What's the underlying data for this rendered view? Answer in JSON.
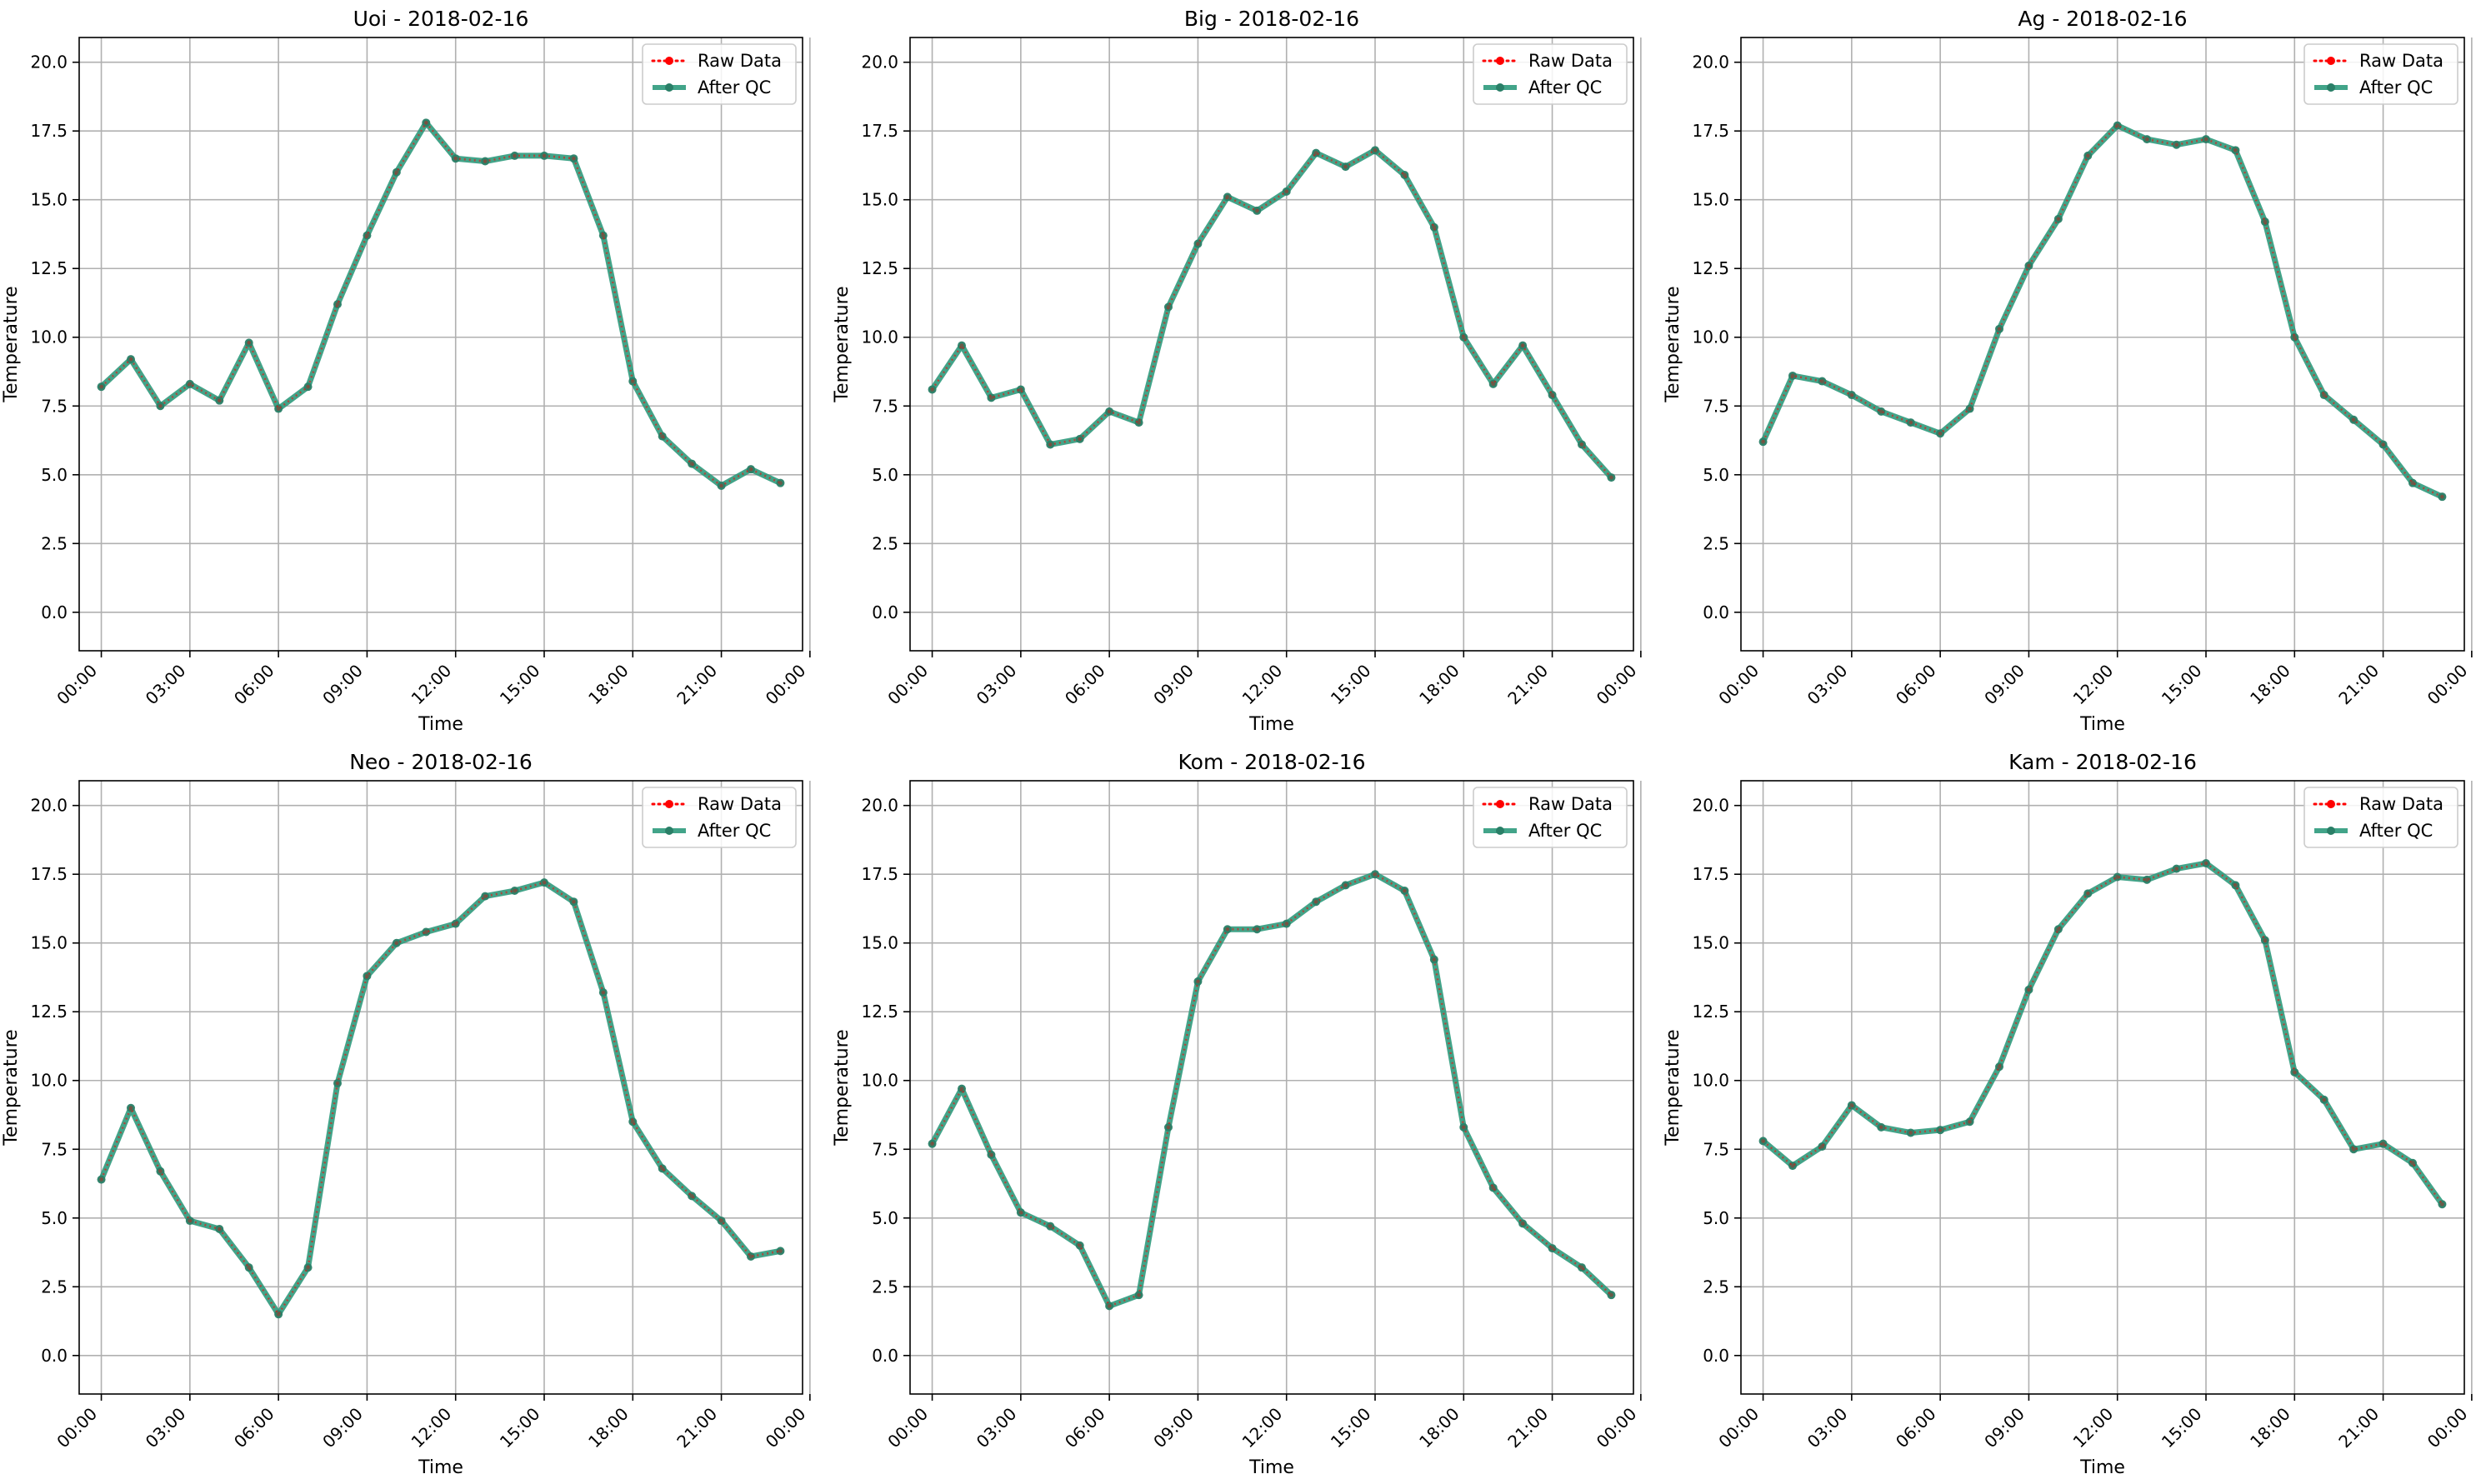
{
  "chart_data": [
    {
      "type": "line",
      "title": "Uoi - 2018-02-16",
      "xlabel": "Time",
      "ylabel": "Temperature",
      "xlim_hours": [
        -0.75,
        23.75
      ],
      "ylim": [
        -1.4,
        20.9
      ],
      "x_ticks": [
        "00:00",
        "03:00",
        "06:00",
        "09:00",
        "12:00",
        "15:00",
        "18:00",
        "21:00",
        "00:00"
      ],
      "y_ticks": [
        "0.0",
        "2.5",
        "5.0",
        "7.5",
        "10.0",
        "12.5",
        "15.0",
        "17.5",
        "20.0"
      ],
      "grid": true,
      "legend": "top-right",
      "x": [
        "00:00",
        "01:00",
        "02:00",
        "03:00",
        "04:00",
        "05:00",
        "06:00",
        "07:00",
        "08:00",
        "09:00",
        "10:00",
        "11:00",
        "12:00",
        "13:00",
        "14:00",
        "15:00",
        "16:00",
        "17:00",
        "18:00",
        "19:00",
        "20:00",
        "21:00",
        "22:00",
        "23:00"
      ],
      "series": [
        {
          "name": "Raw Data",
          "color": "#ff0000",
          "style": "dotted",
          "values": [
            8.2,
            9.2,
            7.5,
            8.3,
            7.7,
            9.8,
            7.4,
            8.2,
            11.2,
            13.7,
            16.0,
            17.8,
            16.5,
            16.4,
            16.6,
            16.6,
            16.5,
            13.7,
            8.4,
            6.4,
            5.4,
            4.6,
            5.2,
            4.7
          ]
        },
        {
          "name": "After QC",
          "color": "#2e9a7c",
          "style": "solid",
          "values": [
            8.2,
            9.2,
            7.5,
            8.3,
            7.7,
            9.8,
            7.4,
            8.2,
            11.2,
            13.7,
            16.0,
            17.8,
            16.5,
            16.4,
            16.6,
            16.6,
            16.5,
            13.7,
            8.4,
            6.4,
            5.4,
            4.6,
            5.2,
            4.7
          ]
        }
      ]
    },
    {
      "type": "line",
      "title": "Big - 2018-02-16",
      "xlabel": "Time",
      "ylabel": "Temperature",
      "xlim_hours": [
        -0.75,
        23.75
      ],
      "ylim": [
        -1.4,
        20.9
      ],
      "x_ticks": [
        "00:00",
        "03:00",
        "06:00",
        "09:00",
        "12:00",
        "15:00",
        "18:00",
        "21:00",
        "00:00"
      ],
      "y_ticks": [
        "0.0",
        "2.5",
        "5.0",
        "7.5",
        "10.0",
        "12.5",
        "15.0",
        "17.5",
        "20.0"
      ],
      "grid": true,
      "legend": "top-right",
      "x": [
        "00:00",
        "01:00",
        "02:00",
        "03:00",
        "04:00",
        "05:00",
        "06:00",
        "07:00",
        "08:00",
        "09:00",
        "10:00",
        "11:00",
        "12:00",
        "13:00",
        "14:00",
        "15:00",
        "16:00",
        "17:00",
        "18:00",
        "19:00",
        "20:00",
        "21:00",
        "22:00",
        "23:00"
      ],
      "series": [
        {
          "name": "Raw Data",
          "color": "#ff0000",
          "style": "dotted",
          "values": [
            8.1,
            9.7,
            7.8,
            8.1,
            6.1,
            6.3,
            7.3,
            6.9,
            11.1,
            13.4,
            15.1,
            14.6,
            15.3,
            16.7,
            16.2,
            16.8,
            15.9,
            14.0,
            10.0,
            8.3,
            9.7,
            7.9,
            6.1,
            4.9
          ]
        },
        {
          "name": "After QC",
          "color": "#2e9a7c",
          "style": "solid",
          "values": [
            8.1,
            9.7,
            7.8,
            8.1,
            6.1,
            6.3,
            7.3,
            6.9,
            11.1,
            13.4,
            15.1,
            14.6,
            15.3,
            16.7,
            16.2,
            16.8,
            15.9,
            14.0,
            10.0,
            8.3,
            9.7,
            7.9,
            6.1,
            4.9
          ]
        }
      ]
    },
    {
      "type": "line",
      "title": "Ag - 2018-02-16",
      "xlabel": "Time",
      "ylabel": "Temperature",
      "xlim_hours": [
        -0.75,
        23.75
      ],
      "ylim": [
        -1.4,
        20.9
      ],
      "x_ticks": [
        "00:00",
        "03:00",
        "06:00",
        "09:00",
        "12:00",
        "15:00",
        "18:00",
        "21:00",
        "00:00"
      ],
      "y_ticks": [
        "0.0",
        "2.5",
        "5.0",
        "7.5",
        "10.0",
        "12.5",
        "15.0",
        "17.5",
        "20.0"
      ],
      "grid": true,
      "legend": "top-right",
      "x": [
        "00:00",
        "01:00",
        "02:00",
        "03:00",
        "04:00",
        "05:00",
        "06:00",
        "07:00",
        "08:00",
        "09:00",
        "10:00",
        "11:00",
        "12:00",
        "13:00",
        "14:00",
        "15:00",
        "16:00",
        "17:00",
        "18:00",
        "19:00",
        "20:00",
        "21:00",
        "22:00",
        "23:00"
      ],
      "series": [
        {
          "name": "Raw Data",
          "color": "#ff0000",
          "style": "dotted",
          "values": [
            6.2,
            8.6,
            8.4,
            7.9,
            7.3,
            6.9,
            6.5,
            7.4,
            10.3,
            12.6,
            14.3,
            16.6,
            17.7,
            17.2,
            17.0,
            17.2,
            16.8,
            14.2,
            10.0,
            7.9,
            7.0,
            6.1,
            4.7,
            4.2
          ]
        },
        {
          "name": "After QC",
          "color": "#2e9a7c",
          "style": "solid",
          "values": [
            6.2,
            8.6,
            8.4,
            7.9,
            7.3,
            6.9,
            6.5,
            7.4,
            10.3,
            12.6,
            14.3,
            16.6,
            17.7,
            17.2,
            17.0,
            17.2,
            16.8,
            14.2,
            10.0,
            7.9,
            7.0,
            6.1,
            4.7,
            4.2
          ]
        }
      ]
    },
    {
      "type": "line",
      "title": "Neo - 2018-02-16",
      "xlabel": "Time",
      "ylabel": "Temperature",
      "xlim_hours": [
        -0.75,
        23.75
      ],
      "ylim": [
        -1.4,
        20.9
      ],
      "x_ticks": [
        "00:00",
        "03:00",
        "06:00",
        "09:00",
        "12:00",
        "15:00",
        "18:00",
        "21:00",
        "00:00"
      ],
      "y_ticks": [
        "0.0",
        "2.5",
        "5.0",
        "7.5",
        "10.0",
        "12.5",
        "15.0",
        "17.5",
        "20.0"
      ],
      "grid": true,
      "legend": "top-right",
      "x": [
        "00:00",
        "01:00",
        "02:00",
        "03:00",
        "04:00",
        "05:00",
        "06:00",
        "07:00",
        "08:00",
        "09:00",
        "10:00",
        "11:00",
        "12:00",
        "13:00",
        "14:00",
        "15:00",
        "16:00",
        "17:00",
        "18:00",
        "19:00",
        "20:00",
        "21:00",
        "22:00",
        "23:00"
      ],
      "series": [
        {
          "name": "Raw Data",
          "color": "#ff0000",
          "style": "dotted",
          "values": [
            6.4,
            9.0,
            6.7,
            4.9,
            4.6,
            3.2,
            1.5,
            3.2,
            9.9,
            13.8,
            15.0,
            15.4,
            15.7,
            16.7,
            16.9,
            17.2,
            16.5,
            13.2,
            8.5,
            6.8,
            5.8,
            4.9,
            3.6,
            3.8
          ]
        },
        {
          "name": "After QC",
          "color": "#2e9a7c",
          "style": "solid",
          "values": [
            6.4,
            9.0,
            6.7,
            4.9,
            4.6,
            3.2,
            1.5,
            3.2,
            9.9,
            13.8,
            15.0,
            15.4,
            15.7,
            16.7,
            16.9,
            17.2,
            16.5,
            13.2,
            8.5,
            6.8,
            5.8,
            4.9,
            3.6,
            3.8
          ]
        }
      ]
    },
    {
      "type": "line",
      "title": "Kom - 2018-02-16",
      "xlabel": "Time",
      "ylabel": "Temperature",
      "xlim_hours": [
        -0.75,
        23.75
      ],
      "ylim": [
        -1.4,
        20.9
      ],
      "x_ticks": [
        "00:00",
        "03:00",
        "06:00",
        "09:00",
        "12:00",
        "15:00",
        "18:00",
        "21:00",
        "00:00"
      ],
      "y_ticks": [
        "0.0",
        "2.5",
        "5.0",
        "7.5",
        "10.0",
        "12.5",
        "15.0",
        "17.5",
        "20.0"
      ],
      "grid": true,
      "legend": "top-right",
      "x": [
        "00:00",
        "01:00",
        "02:00",
        "03:00",
        "04:00",
        "05:00",
        "06:00",
        "07:00",
        "08:00",
        "09:00",
        "10:00",
        "11:00",
        "12:00",
        "13:00",
        "14:00",
        "15:00",
        "16:00",
        "17:00",
        "18:00",
        "19:00",
        "20:00",
        "21:00",
        "22:00",
        "23:00"
      ],
      "series": [
        {
          "name": "Raw Data",
          "color": "#ff0000",
          "style": "dotted",
          "values": [
            7.7,
            9.7,
            7.3,
            5.2,
            4.7,
            4.0,
            1.8,
            2.2,
            8.3,
            13.6,
            15.5,
            15.5,
            15.7,
            16.5,
            17.1,
            17.5,
            16.9,
            14.4,
            8.3,
            6.1,
            4.8,
            3.9,
            3.2,
            2.2
          ]
        },
        {
          "name": "After QC",
          "color": "#2e9a7c",
          "style": "solid",
          "values": [
            7.7,
            9.7,
            7.3,
            5.2,
            4.7,
            4.0,
            1.8,
            2.2,
            8.3,
            13.6,
            15.5,
            15.5,
            15.7,
            16.5,
            17.1,
            17.5,
            16.9,
            14.4,
            8.3,
            6.1,
            4.8,
            3.9,
            3.2,
            2.2
          ]
        }
      ]
    },
    {
      "type": "line",
      "title": "Kam - 2018-02-16",
      "xlabel": "Time",
      "ylabel": "Temperature",
      "xlim_hours": [
        -0.75,
        23.75
      ],
      "ylim": [
        -1.4,
        20.9
      ],
      "x_ticks": [
        "00:00",
        "03:00",
        "06:00",
        "09:00",
        "12:00",
        "15:00",
        "18:00",
        "21:00",
        "00:00"
      ],
      "y_ticks": [
        "0.0",
        "2.5",
        "5.0",
        "7.5",
        "10.0",
        "12.5",
        "15.0",
        "17.5",
        "20.0"
      ],
      "grid": true,
      "legend": "top-right",
      "x": [
        "00:00",
        "01:00",
        "02:00",
        "03:00",
        "04:00",
        "05:00",
        "06:00",
        "07:00",
        "08:00",
        "09:00",
        "10:00",
        "11:00",
        "12:00",
        "13:00",
        "14:00",
        "15:00",
        "16:00",
        "17:00",
        "18:00",
        "19:00",
        "20:00",
        "21:00",
        "22:00",
        "23:00"
      ],
      "series": [
        {
          "name": "Raw Data",
          "color": "#ff0000",
          "style": "dotted",
          "values": [
            7.8,
            6.9,
            7.6,
            9.1,
            8.3,
            8.1,
            8.2,
            8.5,
            10.5,
            13.3,
            15.5,
            16.8,
            17.4,
            17.3,
            17.7,
            17.9,
            17.1,
            15.1,
            10.3,
            9.3,
            7.5,
            7.7,
            7.0,
            5.5
          ]
        },
        {
          "name": "After QC",
          "color": "#2e9a7c",
          "style": "solid",
          "values": [
            7.8,
            6.9,
            7.6,
            9.1,
            8.3,
            8.1,
            8.2,
            8.5,
            10.5,
            13.3,
            15.5,
            16.8,
            17.4,
            17.3,
            17.7,
            17.9,
            17.1,
            15.1,
            10.3,
            9.3,
            7.5,
            7.7,
            7.0,
            5.5
          ]
        }
      ]
    }
  ]
}
